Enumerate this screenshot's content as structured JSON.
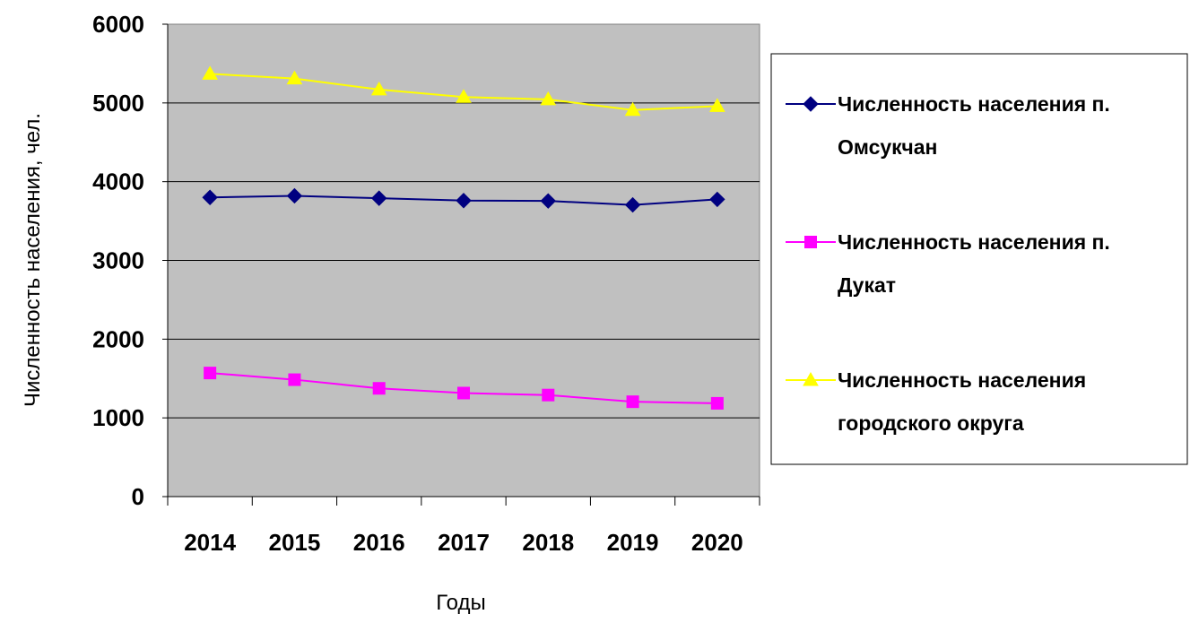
{
  "chart_data": {
    "type": "line",
    "title": "",
    "xlabel": "Годы",
    "ylabel": "Численность населения, чел.",
    "categories": [
      "2014",
      "2015",
      "2016",
      "2017",
      "2018",
      "2019",
      "2020"
    ],
    "ylim": [
      0,
      6000
    ],
    "yticks": [
      "0",
      "1000",
      "2000",
      "3000",
      "4000",
      "5000",
      "6000"
    ],
    "grid": true,
    "legend_position": "right",
    "plot_background": "#c0c0c0",
    "series": [
      {
        "name_lines": [
          "Численность населения п.",
          "Омсукчан"
        ],
        "color": "#000080",
        "marker": "diamond",
        "values": [
          3800,
          3820,
          3790,
          3760,
          3755,
          3705,
          3775
        ]
      },
      {
        "name_lines": [
          "Численность населения п.",
          "Дукат"
        ],
        "color": "#ff00ff",
        "marker": "square",
        "values": [
          1570,
          1485,
          1375,
          1315,
          1290,
          1205,
          1185
        ]
      },
      {
        "name_lines": [
          "Численность населения",
          "городского округа"
        ],
        "color": "#ffff00",
        "marker": "triangle",
        "values": [
          5370,
          5310,
          5170,
          5075,
          5045,
          4910,
          4960
        ]
      }
    ]
  }
}
